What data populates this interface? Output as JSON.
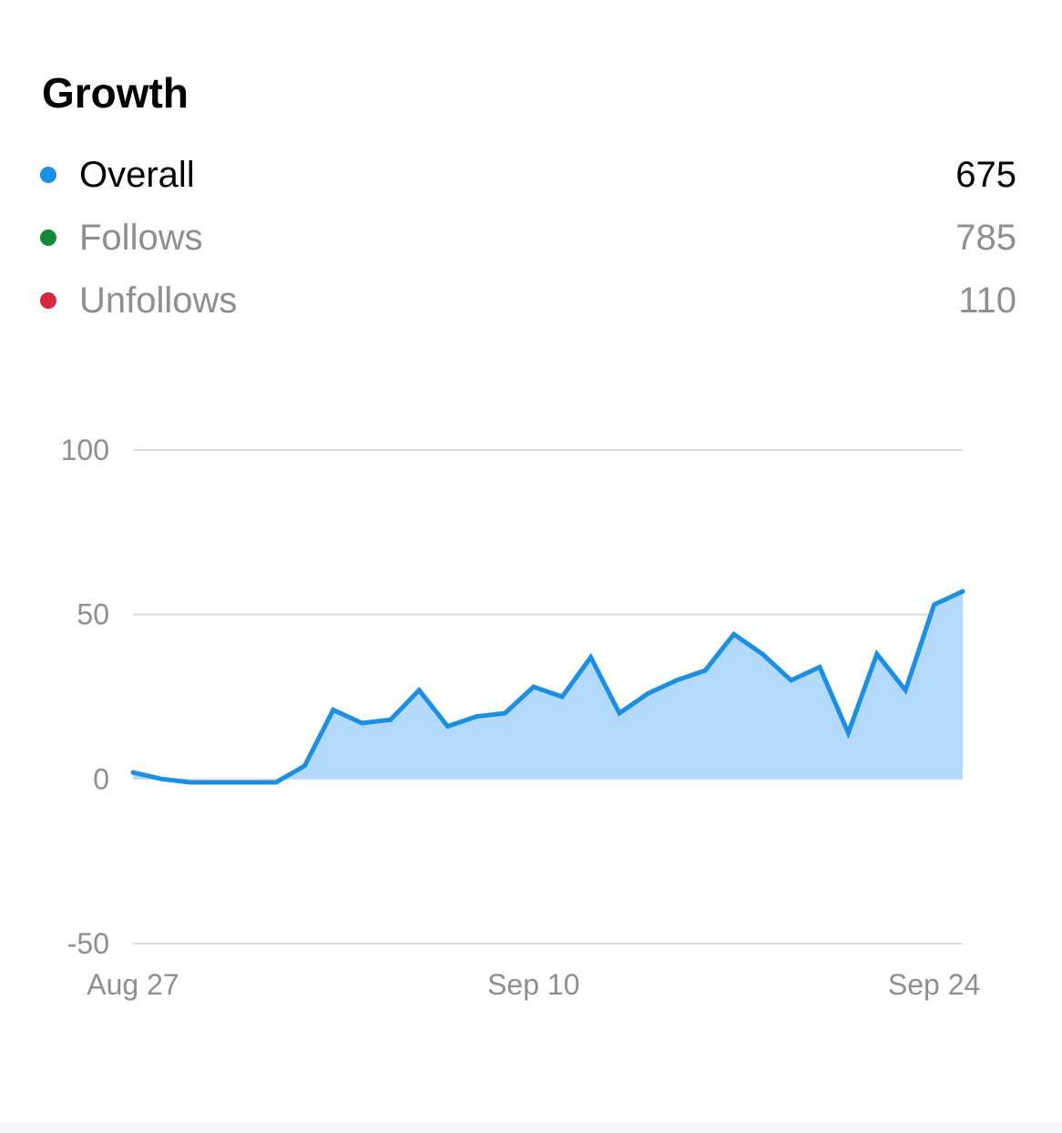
{
  "title": "Growth",
  "legend": [
    {
      "label": "Overall",
      "value": "675",
      "color": "#1a8fe3",
      "active": true
    },
    {
      "label": "Follows",
      "value": "785",
      "color": "#138a3a",
      "active": false
    },
    {
      "label": "Unfollows",
      "value": "110",
      "color": "#d6283a",
      "active": false
    }
  ],
  "chart_data": {
    "type": "area",
    "ylim": [
      -50,
      100
    ],
    "y_ticks": [
      "100",
      "50",
      "0",
      "-50"
    ],
    "y_tick_values": [
      100,
      50,
      0,
      -50
    ],
    "x_ticks": [
      "Aug 27",
      "Sep 10",
      "Sep 24"
    ],
    "x_tick_index": [
      0,
      14,
      28
    ],
    "grid": true,
    "series": [
      {
        "color": "#1a8fe3",
        "fill": "#b3dafc",
        "values": [
          2,
          0,
          -1,
          -1,
          -1,
          -1,
          4,
          21,
          17,
          18,
          27,
          16,
          19,
          20,
          28,
          25,
          37,
          20,
          26,
          30,
          33,
          44,
          38,
          30,
          34,
          14,
          38,
          27,
          53,
          57
        ]
      }
    ]
  }
}
